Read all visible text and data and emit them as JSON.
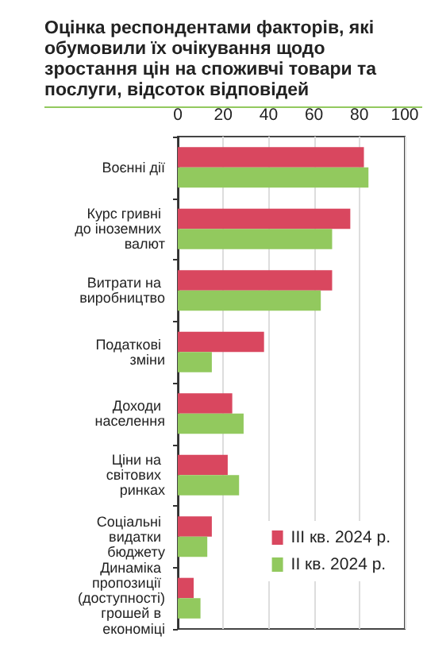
{
  "chart_data": {
    "type": "bar",
    "orientation": "horizontal",
    "title": "Оцінка респондентами факторів, які обумовили їх очікування щодо зростання  цін на споживчі товари та послуги, відсоток відповідей",
    "categories": [
      "Воєнні дії",
      "Курс гривні до іноземних валют",
      "Витрати на виробництво",
      "Податкові зміни",
      "Доходи населення",
      "Ціни на світових ринках",
      "Соціальні видатки бюджету",
      "Динаміка пропозиції (доступності) грошей в економіці"
    ],
    "series": [
      {
        "name": "III кв. 2024 р.",
        "color": "#d9475f",
        "values": [
          82,
          76,
          68,
          38,
          24,
          22,
          15,
          7
        ]
      },
      {
        "name": "II кв. 2024 р.",
        "color": "#92c95e",
        "values": [
          84,
          68,
          63,
          15,
          29,
          27,
          13,
          10
        ]
      }
    ],
    "xlim": [
      0,
      100
    ],
    "xticks": [
      0,
      20,
      40,
      60,
      80,
      100
    ],
    "grid": "x",
    "legend": "bottom right"
  }
}
